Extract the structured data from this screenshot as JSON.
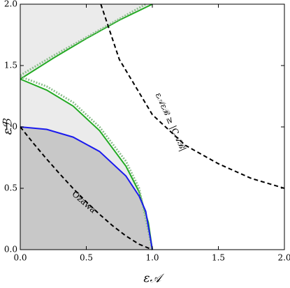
{
  "chart_data": {
    "type": "line",
    "xlabel": "ε𝒜",
    "ylabel": "εℬ",
    "annotations": [
      "Ozawa",
      "ε𝒜εℬ ≥ |C𝒜ℬ|"
    ],
    "xlim": [
      0,
      2
    ],
    "ylim": [
      0,
      2
    ],
    "xticks": [
      {
        "value": 0,
        "label": "0.0"
      },
      0.5,
      {
        "value": 1,
        "label": "1.0"
      },
      1.5,
      {
        "value": 2,
        "label": "2.0"
      }
    ],
    "yticks": [
      {
        "value": 0,
        "label": "0.0"
      },
      0.5,
      {
        "value": 1,
        "label": "1.0"
      },
      1.5,
      {
        "value": 2,
        "label": "2.0"
      }
    ],
    "series": [
      {
        "color": "#22aa22",
        "dash": "solid",
        "fill": "#ebebeb",
        "fill_side": "below",
        "x": [
          0,
          0.2,
          0.4,
          0.6,
          0.8,
          0.9,
          0.97,
          1.0
        ],
        "values": [
          1.39,
          1.3,
          1.17,
          0.97,
          0.68,
          0.47,
          0.22,
          0
        ]
      },
      {
        "color": "#22aa22",
        "dash": "solid",
        "fill": "#ebebeb",
        "fill_side": "above",
        "x": [
          0,
          0.25,
          0.5,
          0.75,
          1.0
        ],
        "values": [
          1.39,
          1.56,
          1.72,
          1.87,
          2.0
        ]
      },
      {
        "color": "#8fbf8f",
        "dash": "dotted",
        "x": [
          0,
          0.2,
          0.4,
          0.6,
          0.8,
          0.9,
          0.98,
          1.0
        ],
        "values": [
          1.41,
          1.33,
          1.2,
          1.0,
          0.72,
          0.5,
          0.1,
          0
        ]
      },
      {
        "color": "#8fbf8f",
        "dash": "dotted",
        "x": [
          0,
          0.25,
          0.5,
          0.75,
          0.95
        ],
        "values": [
          1.42,
          1.58,
          1.73,
          1.88,
          2.0
        ]
      },
      {
        "color": "#1a1aee",
        "dash": "solid",
        "fill": "#c8c8c8",
        "fill_side": "below",
        "x": [
          0,
          0.2,
          0.4,
          0.6,
          0.8,
          0.9,
          0.95,
          1.0
        ],
        "values": [
          1,
          0.98,
          0.917,
          0.8,
          0.6,
          0.436,
          0.312,
          0
        ]
      },
      {
        "color": "#000000",
        "dash": "dashed",
        "x": [
          0,
          0.1,
          0.2,
          0.3,
          0.4,
          0.5,
          0.6,
          0.7,
          0.8,
          0.9,
          1.0
        ],
        "values": [
          1,
          0.866,
          0.738,
          0.616,
          0.499,
          0.39,
          0.288,
          0.194,
          0.112,
          0.044,
          0
        ]
      },
      {
        "color": "#000000",
        "dash": "dashed",
        "x": [
          0.61,
          0.75,
          1.0,
          1.25,
          1.5,
          1.75,
          2.0
        ],
        "values": [
          2.0,
          1.55,
          1.1,
          0.85,
          0.7,
          0.58,
          0.5
        ]
      }
    ]
  }
}
